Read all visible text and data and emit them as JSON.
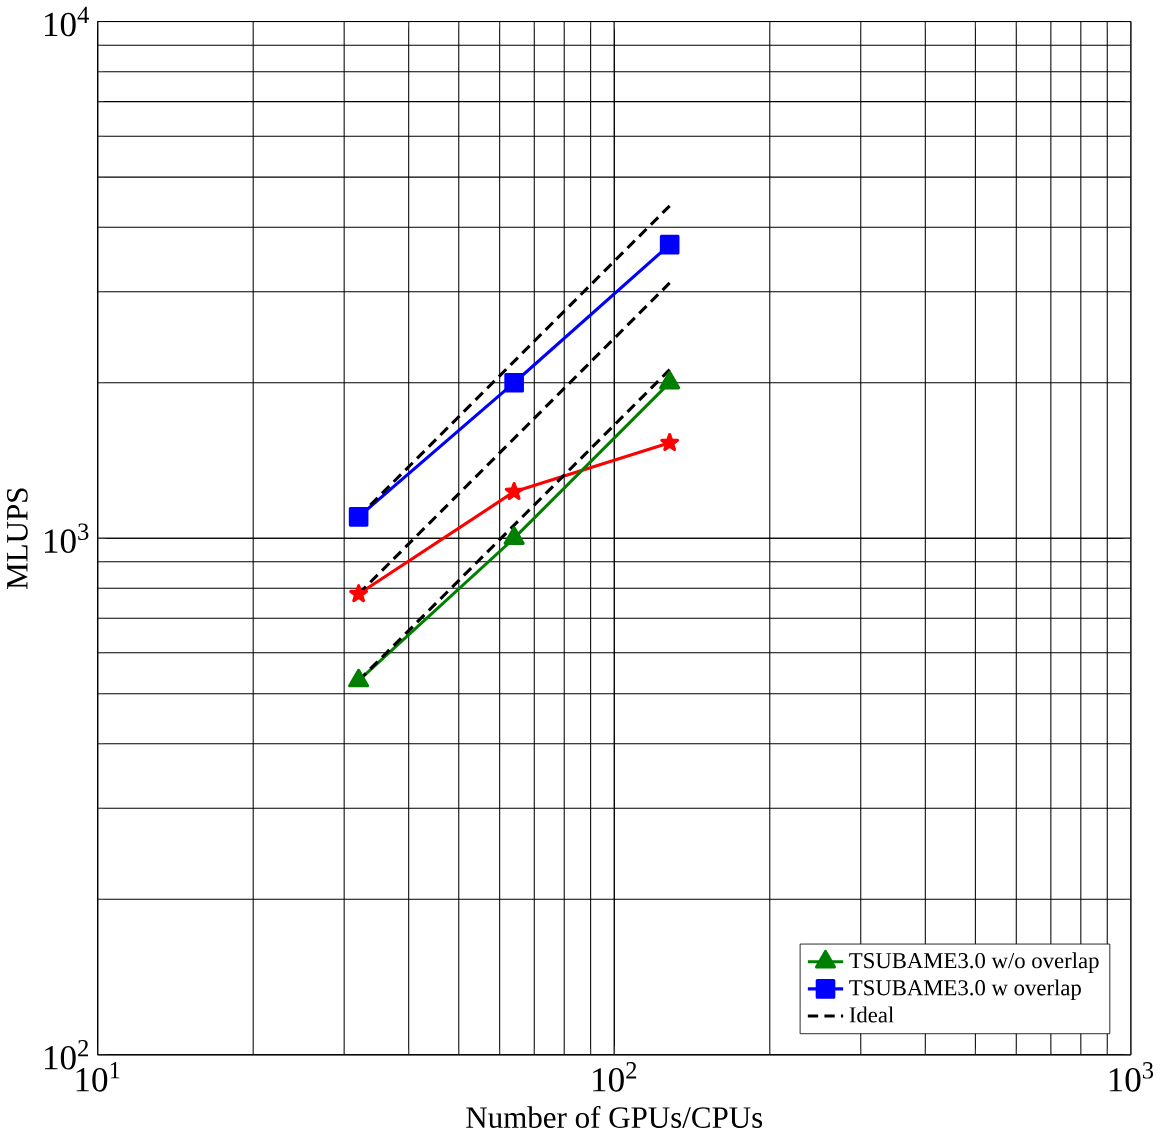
{
  "chart_data": {
    "type": "line",
    "xlabel": "Number of GPUs/CPUs",
    "ylabel": "MLUPS",
    "log": "xy",
    "grid": true,
    "legend": "bottom right",
    "xlim": [
      10,
      1000
    ],
    "ylim": [
      100,
      10000
    ],
    "xticks": [
      {
        "value": 10,
        "label": "10$^{1}$"
      },
      {
        "value": 100,
        "label": "10$^{2}$"
      },
      {
        "value": 1000,
        "label": "10$^{3}$"
      }
    ],
    "yticks": [
      {
        "value": 100,
        "label": "10$^{2}$"
      },
      {
        "value": 1000,
        "label": "10$^{3}$"
      },
      {
        "value": 10000,
        "label": "10$^{4}$"
      }
    ],
    "series": [
      {
        "color": "#ff0000",
        "marker": "star",
        "line_style": "solid",
        "x": [
          32,
          64,
          128
        ],
        "values": [
          780,
          1230,
          1530
        ]
      },
      {
        "name": "TSUBAME3.0 w/o overlap",
        "color": "#007f00",
        "marker": "triangle",
        "line_style": "solid",
        "x": [
          32,
          64,
          128
        ],
        "values": [
          530,
          1000,
          2000
        ]
      },
      {
        "name": "TSUBAME3.0 w overlap",
        "color": "#0000ff",
        "marker": "square",
        "line_style": "solid",
        "x": [
          32,
          64,
          128
        ],
        "values": [
          1100,
          2000,
          3700
        ]
      },
      {
        "name": "Ideal",
        "color": "#000000",
        "marker": "none",
        "line_style": "dashed",
        "x": [
          32,
          128
        ],
        "values": [
          1100,
          4400
        ]
      },
      {
        "color": "#000000",
        "marker": "none",
        "line_style": "dashed",
        "x": [
          32,
          128
        ],
        "values": [
          780,
          3120
        ]
      },
      {
        "color": "#000000",
        "marker": "none",
        "line_style": "dashed",
        "x": [
          32,
          128
        ],
        "values": [
          530,
          2120
        ]
      }
    ]
  }
}
